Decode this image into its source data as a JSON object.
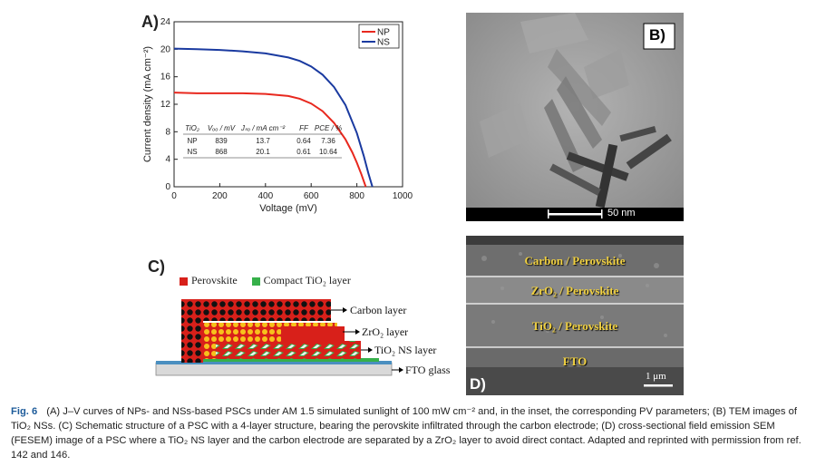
{
  "panels": {
    "a_label": "A)",
    "b_label": "B)",
    "c_label": "C)",
    "d_label": "D)"
  },
  "chart_data": {
    "type": "line",
    "xlabel": "Voltage (mV)",
    "ylabel": "Current density (mA cm⁻²)",
    "xlim": [
      0,
      1000
    ],
    "ylim": [
      0,
      24
    ],
    "x_ticks": [
      "0",
      "200",
      "400",
      "600",
      "800",
      "1000"
    ],
    "y_ticks": [
      "0",
      "4",
      "8",
      "12",
      "16",
      "20",
      "24"
    ],
    "legend_position": "top-right",
    "series": [
      {
        "name": "NP",
        "color": "#e8281e",
        "x": [
          0,
          100,
          200,
          300,
          400,
          500,
          550,
          600,
          650,
          700,
          750,
          780,
          800,
          820,
          839
        ],
        "y": [
          13.7,
          13.6,
          13.6,
          13.6,
          13.5,
          13.2,
          12.8,
          12.1,
          11.0,
          9.3,
          6.9,
          5.0,
          3.5,
          1.8,
          0
        ]
      },
      {
        "name": "NS",
        "color": "#1a3aa0",
        "x": [
          0,
          100,
          200,
          300,
          400,
          500,
          550,
          600,
          650,
          700,
          750,
          800,
          830,
          850,
          868
        ],
        "y": [
          20.1,
          20.0,
          19.9,
          19.7,
          19.4,
          18.8,
          18.3,
          17.5,
          16.3,
          14.5,
          11.9,
          7.8,
          4.5,
          2.0,
          0
        ]
      }
    ],
    "inset_table": {
      "headers": [
        "TiO₂",
        "Vₒₒ / mV",
        "Jₛₒ / mA cm⁻²",
        "FF",
        "PCE / %"
      ],
      "rows": [
        [
          "NP",
          "839",
          "13.7",
          "0.64",
          "7.36"
        ],
        [
          "NS",
          "868",
          "20.1",
          "0.61",
          "10.64"
        ]
      ]
    }
  },
  "tem": {
    "scale_label": "50 nm"
  },
  "schematic": {
    "legend_perovskite": "Perovskite",
    "legend_compact": "Compact TiO₂ layer",
    "carbon_layer": "Carbon layer",
    "zro2_layer": "ZrO₂ layer",
    "tio2_ns_layer": "TiO₂ NS layer",
    "fto_glass": "FTO glass",
    "colors": {
      "perovskite": "#d8201a",
      "compact": "#36b04a",
      "carbon": "#111111",
      "zro2": "#f7c21c",
      "fto": "#4a8fc0"
    }
  },
  "sem": {
    "label_carbon": "Carbon / Perovskite",
    "label_zro2": "ZrO₂ / Perovskite",
    "label_tio2": "TiO₂ / Perovskite",
    "label_fto": "FTO",
    "scale_label": "1 μm"
  },
  "caption": {
    "fig_label": "Fig. 6",
    "text": "(A) J–V curves of NPs- and NSs-based PSCs under AM 1.5 simulated sunlight of 100 mW cm⁻² and, in the inset, the corresponding PV parameters; (B) TEM images of TiO₂ NSs. (C) Schematic structure of a PSC with a 4-layer structure, bearing the perovskite infiltrated through the carbon electrode; (D) cross-sectional field emission SEM (FESEM) image of a PSC where a TiO₂ NS layer and the carbon electrode are separated by a ZrO₂ layer to avoid direct contact. Adapted and reprinted with permission from ref. 142 and 146."
  }
}
